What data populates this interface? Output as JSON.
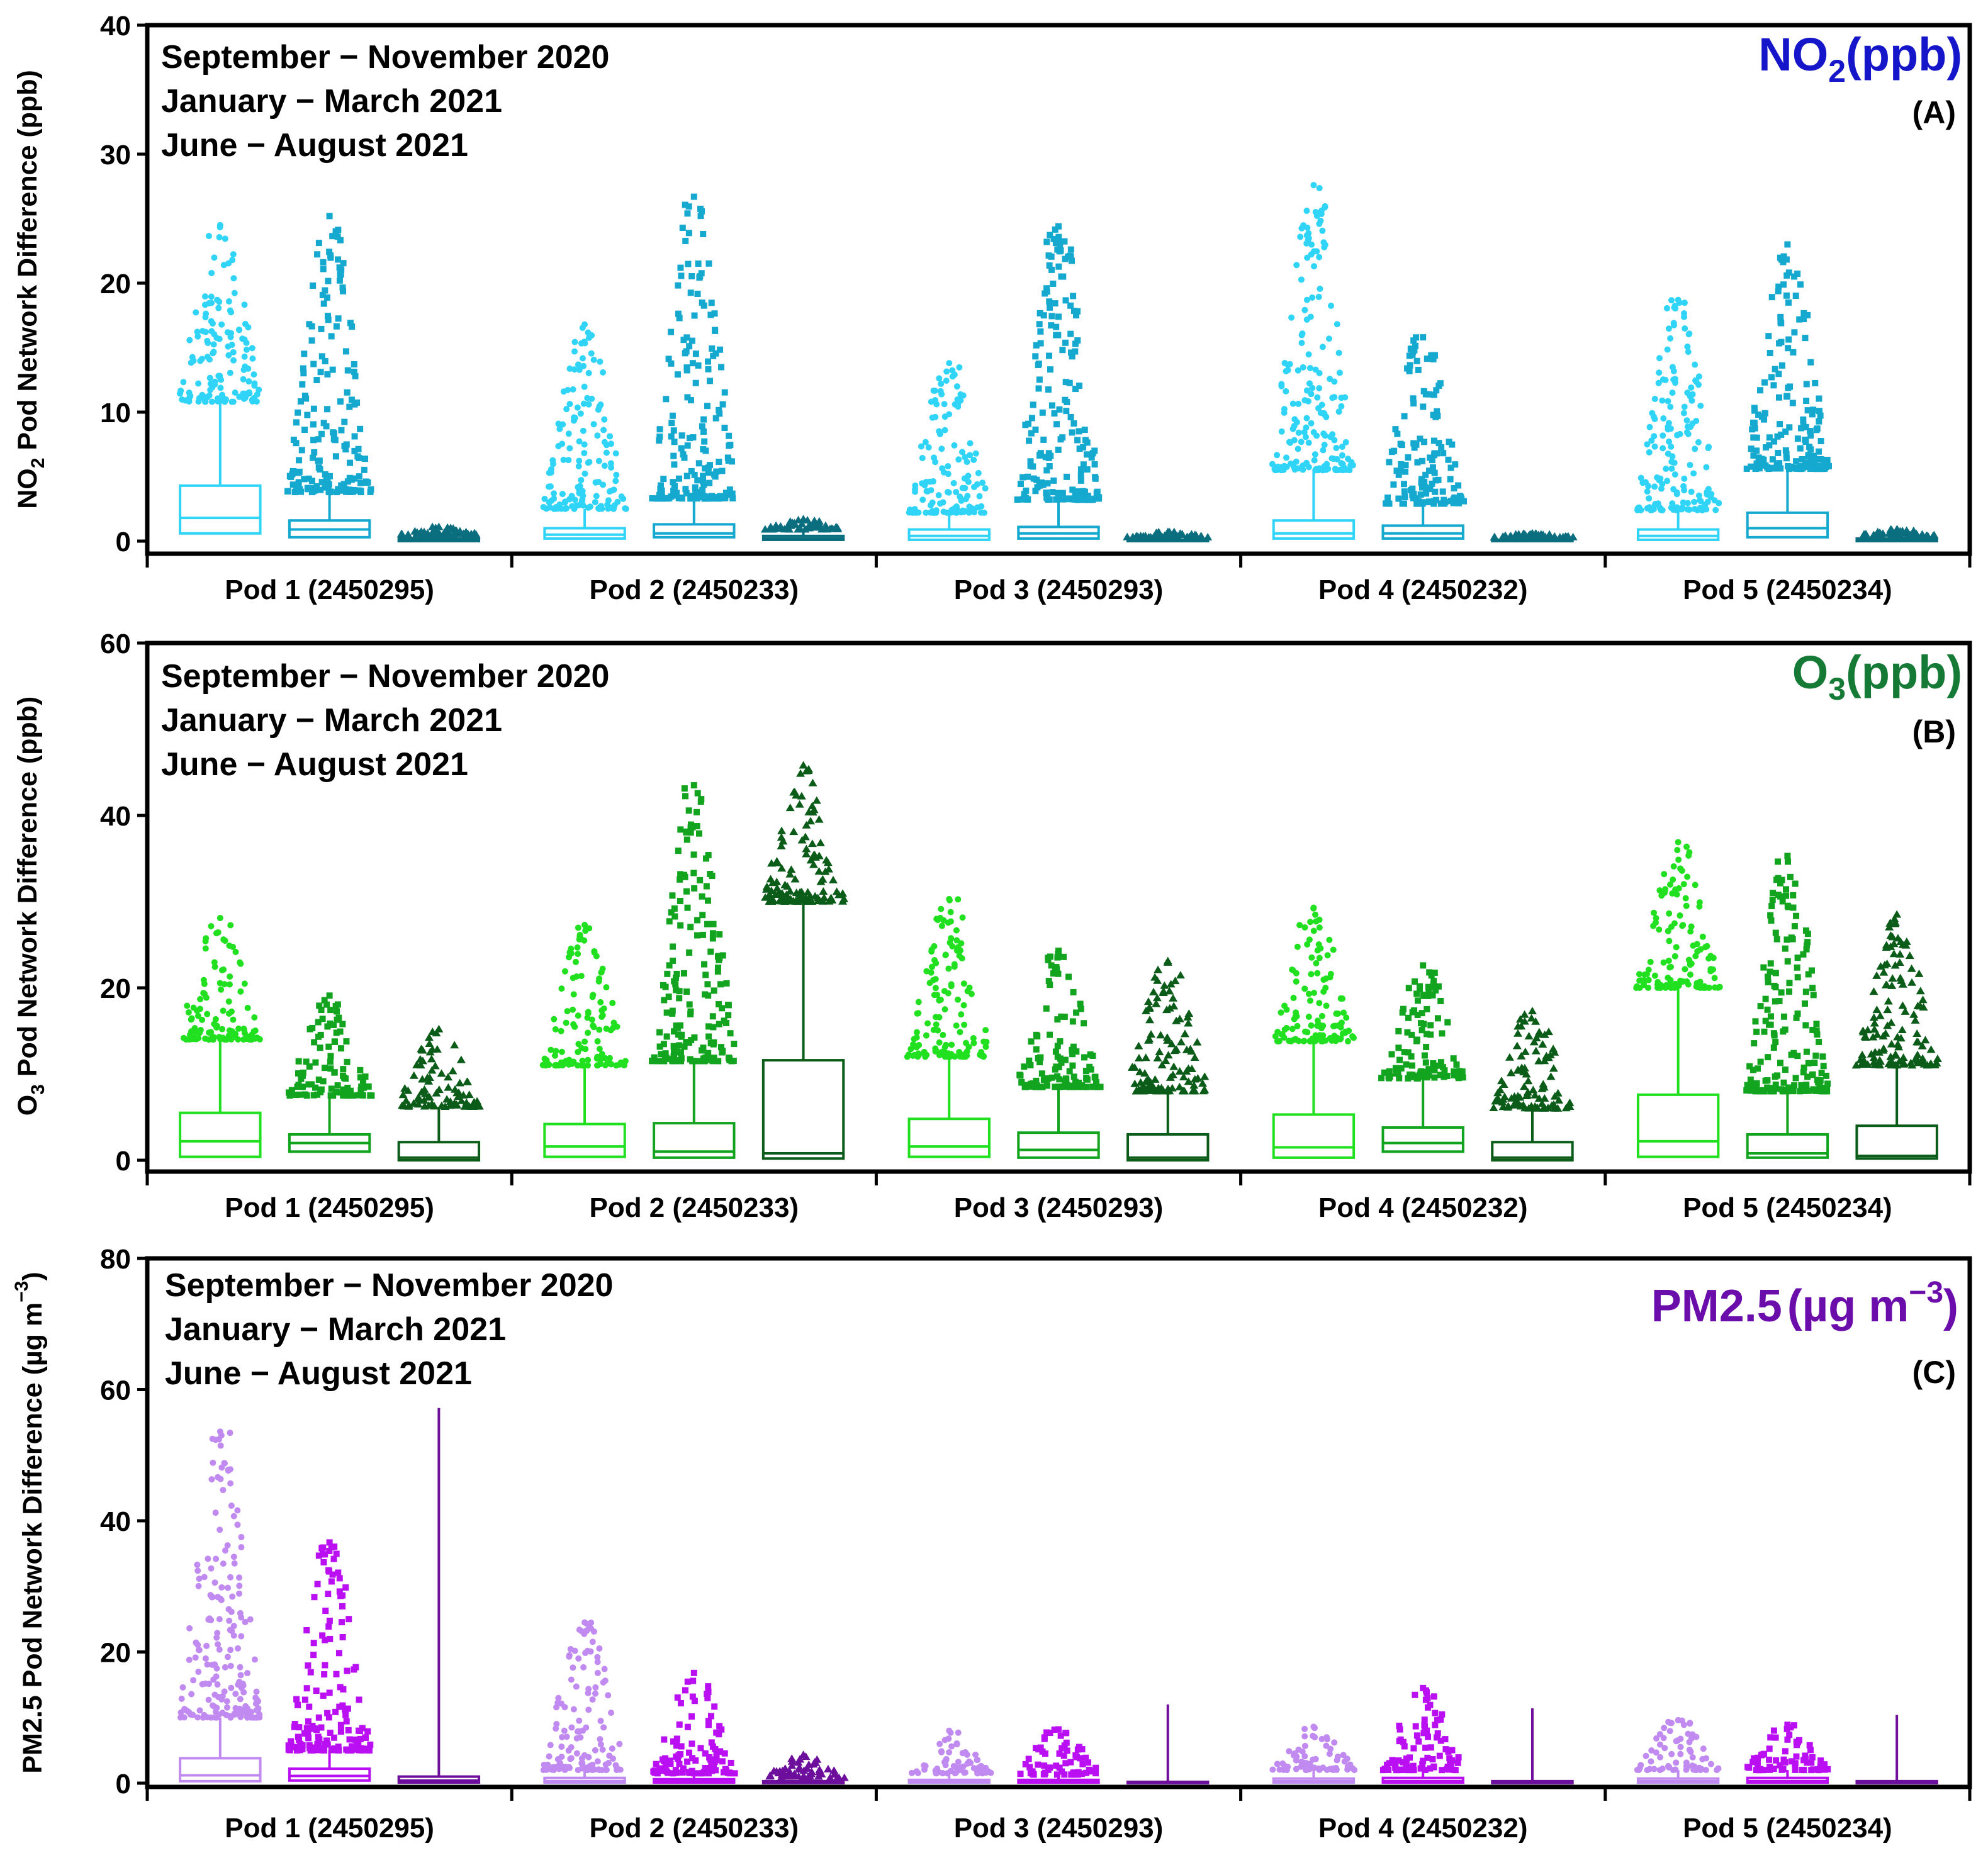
{
  "figure": {
    "season_labels": [
      "September − November 2020",
      "January − March 2021",
      "June − August 2021"
    ],
    "pods": [
      "Pod 1 (2450295)",
      "Pod 2 (2450233)",
      "Pod 3 (2450293)",
      "Pod 4 (2450232)",
      "Pod 5 (2450234)"
    ]
  },
  "chart_data": [
    {
      "type": "box",
      "panel": "(A)",
      "pollutant_label": "NO2 (ppb)",
      "title": "NO₂ (ppb)",
      "ylabel": "NO2 Pod Network Difference (ppb)",
      "ylim": [
        0,
        40
      ],
      "yticks": [
        0,
        10,
        20,
        30,
        40
      ],
      "title_color": "#1515c9",
      "colors": [
        "#2fd4f7",
        "#15a9cf",
        "#0b6e7f"
      ],
      "markers": [
        "circle",
        "square",
        "triangle"
      ],
      "categories": [
        "Pod 1 (2450295)",
        "Pod 2 (2450233)",
        "Pod 3 (2450293)",
        "Pod 4 (2450232)",
        "Pod 5 (2450234)"
      ],
      "series": [
        {
          "name": "September − November 2020",
          "boxes": [
            {
              "q1": 0.6,
              "median": 1.8,
              "q3": 4.3,
              "whisker": 10.8,
              "outlier_max": 24.5
            },
            {
              "q1": 0.2,
              "median": 0.5,
              "q3": 1.0,
              "whisker": 2.5,
              "outlier_max": 16.8
            },
            {
              "q1": 0.1,
              "median": 0.4,
              "q3": 0.9,
              "whisker": 2.2,
              "outlier_max": 13.8
            },
            {
              "q1": 0.2,
              "median": 0.6,
              "q3": 1.6,
              "whisker": 5.5,
              "outlier_max": 27.6
            },
            {
              "q1": 0.1,
              "median": 0.4,
              "q3": 0.9,
              "whisker": 2.4,
              "outlier_max": 18.7
            }
          ]
        },
        {
          "name": "January − March 2021",
          "boxes": [
            {
              "q1": 0.3,
              "median": 0.9,
              "q3": 1.6,
              "whisker": 3.8,
              "outlier_max": 25.2
            },
            {
              "q1": 0.3,
              "median": 0.6,
              "q3": 1.3,
              "whisker": 3.3,
              "outlier_max": 26.7
            },
            {
              "q1": 0.2,
              "median": 0.6,
              "q3": 1.1,
              "whisker": 3.2,
              "outlier_max": 24.4
            },
            {
              "q1": 0.2,
              "median": 0.6,
              "q3": 1.2,
              "whisker": 2.9,
              "outlier_max": 15.8
            },
            {
              "q1": 0.3,
              "median": 1.0,
              "q3": 2.2,
              "whisker": 5.6,
              "outlier_max": 23.0
            }
          ]
        },
        {
          "name": "June − August 2021",
          "boxes": [
            {
              "q1": 0.0,
              "median": 0.1,
              "q3": 0.2,
              "whisker": 0.5,
              "outlier_max": 1.1
            },
            {
              "q1": 0.1,
              "median": 0.2,
              "q3": 0.4,
              "whisker": 0.9,
              "outlier_max": 1.7
            },
            {
              "q1": 0.0,
              "median": 0.1,
              "q3": 0.1,
              "whisker": 0.3,
              "outlier_max": 0.7
            },
            {
              "q1": 0.0,
              "median": 0.1,
              "q3": 0.1,
              "whisker": 0.3,
              "outlier_max": 0.6
            },
            {
              "q1": 0.0,
              "median": 0.1,
              "q3": 0.2,
              "whisker": 0.4,
              "outlier_max": 0.9
            }
          ]
        }
      ]
    },
    {
      "type": "box",
      "panel": "(B)",
      "pollutant_label": "O3 (ppb)",
      "title": "O₃ (ppb)",
      "ylabel": "O3 Pod Network Difference (ppb)",
      "ylim": [
        0,
        60
      ],
      "yticks": [
        0,
        20,
        40,
        60
      ],
      "title_color": "#147a36",
      "colors": [
        "#20e020",
        "#12a41f",
        "#0b5c18"
      ],
      "markers": [
        "circle",
        "square",
        "triangle"
      ],
      "categories": [
        "Pod 1 (2450295)",
        "Pod 2 (2450233)",
        "Pod 3 (2450293)",
        "Pod 4 (2450232)",
        "Pod 5 (2450234)"
      ],
      "series": [
        {
          "name": "September − November 2020",
          "boxes": [
            {
              "q1": 0.4,
              "median": 2.2,
              "q3": 5.5,
              "whisker": 14.0,
              "outlier_max": 28.1
            },
            {
              "q1": 0.4,
              "median": 1.6,
              "q3": 4.2,
              "whisker": 11.0,
              "outlier_max": 27.3
            },
            {
              "q1": 0.4,
              "median": 1.6,
              "q3": 4.8,
              "whisker": 12.0,
              "outlier_max": 30.3
            },
            {
              "q1": 0.3,
              "median": 1.5,
              "q3": 5.3,
              "whisker": 13.8,
              "outlier_max": 29.3
            },
            {
              "q1": 0.4,
              "median": 2.2,
              "q3": 7.6,
              "whisker": 20.0,
              "outlier_max": 36.9
            }
          ]
        },
        {
          "name": "January − March 2021",
          "boxes": [
            {
              "q1": 1.0,
              "median": 2.0,
              "q3": 3.0,
              "whisker": 7.5,
              "outlier_max": 19.1
            },
            {
              "q1": 0.3,
              "median": 1.0,
              "q3": 4.3,
              "whisker": 11.5,
              "outlier_max": 43.5
            },
            {
              "q1": 0.3,
              "median": 1.2,
              "q3": 3.2,
              "whisker": 8.5,
              "outlier_max": 24.3
            },
            {
              "q1": 1.0,
              "median": 2.0,
              "q3": 3.8,
              "whisker": 9.5,
              "outlier_max": 22.6
            },
            {
              "q1": 0.3,
              "median": 0.8,
              "q3": 3.0,
              "whisker": 8.0,
              "outlier_max": 35.3
            }
          ]
        },
        {
          "name": "June − August 2021",
          "boxes": [
            {
              "q1": 0.0,
              "median": 0.3,
              "q3": 2.1,
              "whisker": 6.2,
              "outlier_max": 15.2
            },
            {
              "q1": 0.2,
              "median": 0.8,
              "q3": 11.6,
              "whisker": 30.0,
              "outlier_max": 45.8
            },
            {
              "q1": 0.0,
              "median": 0.3,
              "q3": 3.0,
              "whisker": 8.0,
              "outlier_max": 23.1
            },
            {
              "q1": 0.0,
              "median": 0.3,
              "q3": 2.1,
              "whisker": 6.0,
              "outlier_max": 17.3
            },
            {
              "q1": 0.2,
              "median": 0.5,
              "q3": 4.0,
              "whisker": 11.0,
              "outlier_max": 28.5
            }
          ]
        }
      ]
    },
    {
      "type": "box",
      "panel": "(C)",
      "pollutant_label": "PM2.5 (µg m⁻³)",
      "title_main": "PM2.5",
      "title_units": "(µg m",
      "title_exp": "−3",
      "title_close": ")",
      "ylabel_main": "PM2.5 Pod Network Difference (µg m",
      "ylabel_exp": "−3",
      "ylabel_close": ")",
      "ylim": [
        0,
        80
      ],
      "yticks": [
        0,
        20,
        40,
        60,
        80
      ],
      "title_color": "#6a0dab",
      "colors": [
        "#c08af0",
        "#b90ff2",
        "#6d0f9c"
      ],
      "markers": [
        "circle",
        "square",
        "triangle"
      ],
      "categories": [
        "Pod 1 (2450295)",
        "Pod 2 (2450233)",
        "Pod 3 (2450293)",
        "Pod 4 (2450232)",
        "Pod 5 (2450234)"
      ],
      "series": [
        {
          "name": "September − November 2020",
          "boxes": [
            {
              "q1": 0.3,
              "median": 1.2,
              "q3": 3.8,
              "whisker": 10.0,
              "outlier_max": 53.6
            },
            {
              "q1": 0.1,
              "median": 0.3,
              "q3": 0.8,
              "whisker": 2.0,
              "outlier_max": 24.5
            },
            {
              "q1": 0.1,
              "median": 0.2,
              "q3": 0.5,
              "whisker": 1.5,
              "outlier_max": 8.0
            },
            {
              "q1": 0.1,
              "median": 0.3,
              "q3": 0.7,
              "whisker": 2.0,
              "outlier_max": 8.6
            },
            {
              "q1": 0.1,
              "median": 0.3,
              "q3": 0.7,
              "whisker": 2.0,
              "outlier_max": 9.6
            }
          ]
        },
        {
          "name": "January − March 2021",
          "boxes": [
            {
              "q1": 0.4,
              "median": 1.1,
              "q3": 2.2,
              "whisker": 5.0,
              "outlier_max": 36.7
            },
            {
              "q1": 0.1,
              "median": 0.3,
              "q3": 0.6,
              "whisker": 1.5,
              "outlier_max": 16.8
            },
            {
              "q1": 0.1,
              "median": 0.2,
              "q3": 0.5,
              "whisker": 1.3,
              "outlier_max": 8.2
            },
            {
              "q1": 0.1,
              "median": 0.3,
              "q3": 0.8,
              "whisker": 2.0,
              "outlier_max": 14.5
            },
            {
              "q1": 0.1,
              "median": 0.3,
              "q3": 0.8,
              "whisker": 2.0,
              "outlier_max": 8.9
            }
          ]
        },
        {
          "name": "June − August 2021",
          "boxes": [
            {
              "q1": 0.1,
              "median": 0.4,
              "q3": 1.0,
              "whisker": 57.2,
              "outlier_max": 57.2
            },
            {
              "q1": 0.0,
              "median": 0.1,
              "q3": 0.3,
              "whisker": 0.8,
              "outlier_max": 4.3
            },
            {
              "q1": 0.0,
              "median": 0.1,
              "q3": 0.2,
              "whisker": 12.0,
              "outlier_max": 12.0
            },
            {
              "q1": 0.0,
              "median": 0.1,
              "q3": 0.3,
              "whisker": 11.4,
              "outlier_max": 11.4
            },
            {
              "q1": 0.0,
              "median": 0.1,
              "q3": 0.3,
              "whisker": 10.4,
              "outlier_max": 10.4
            }
          ]
        }
      ]
    }
  ]
}
